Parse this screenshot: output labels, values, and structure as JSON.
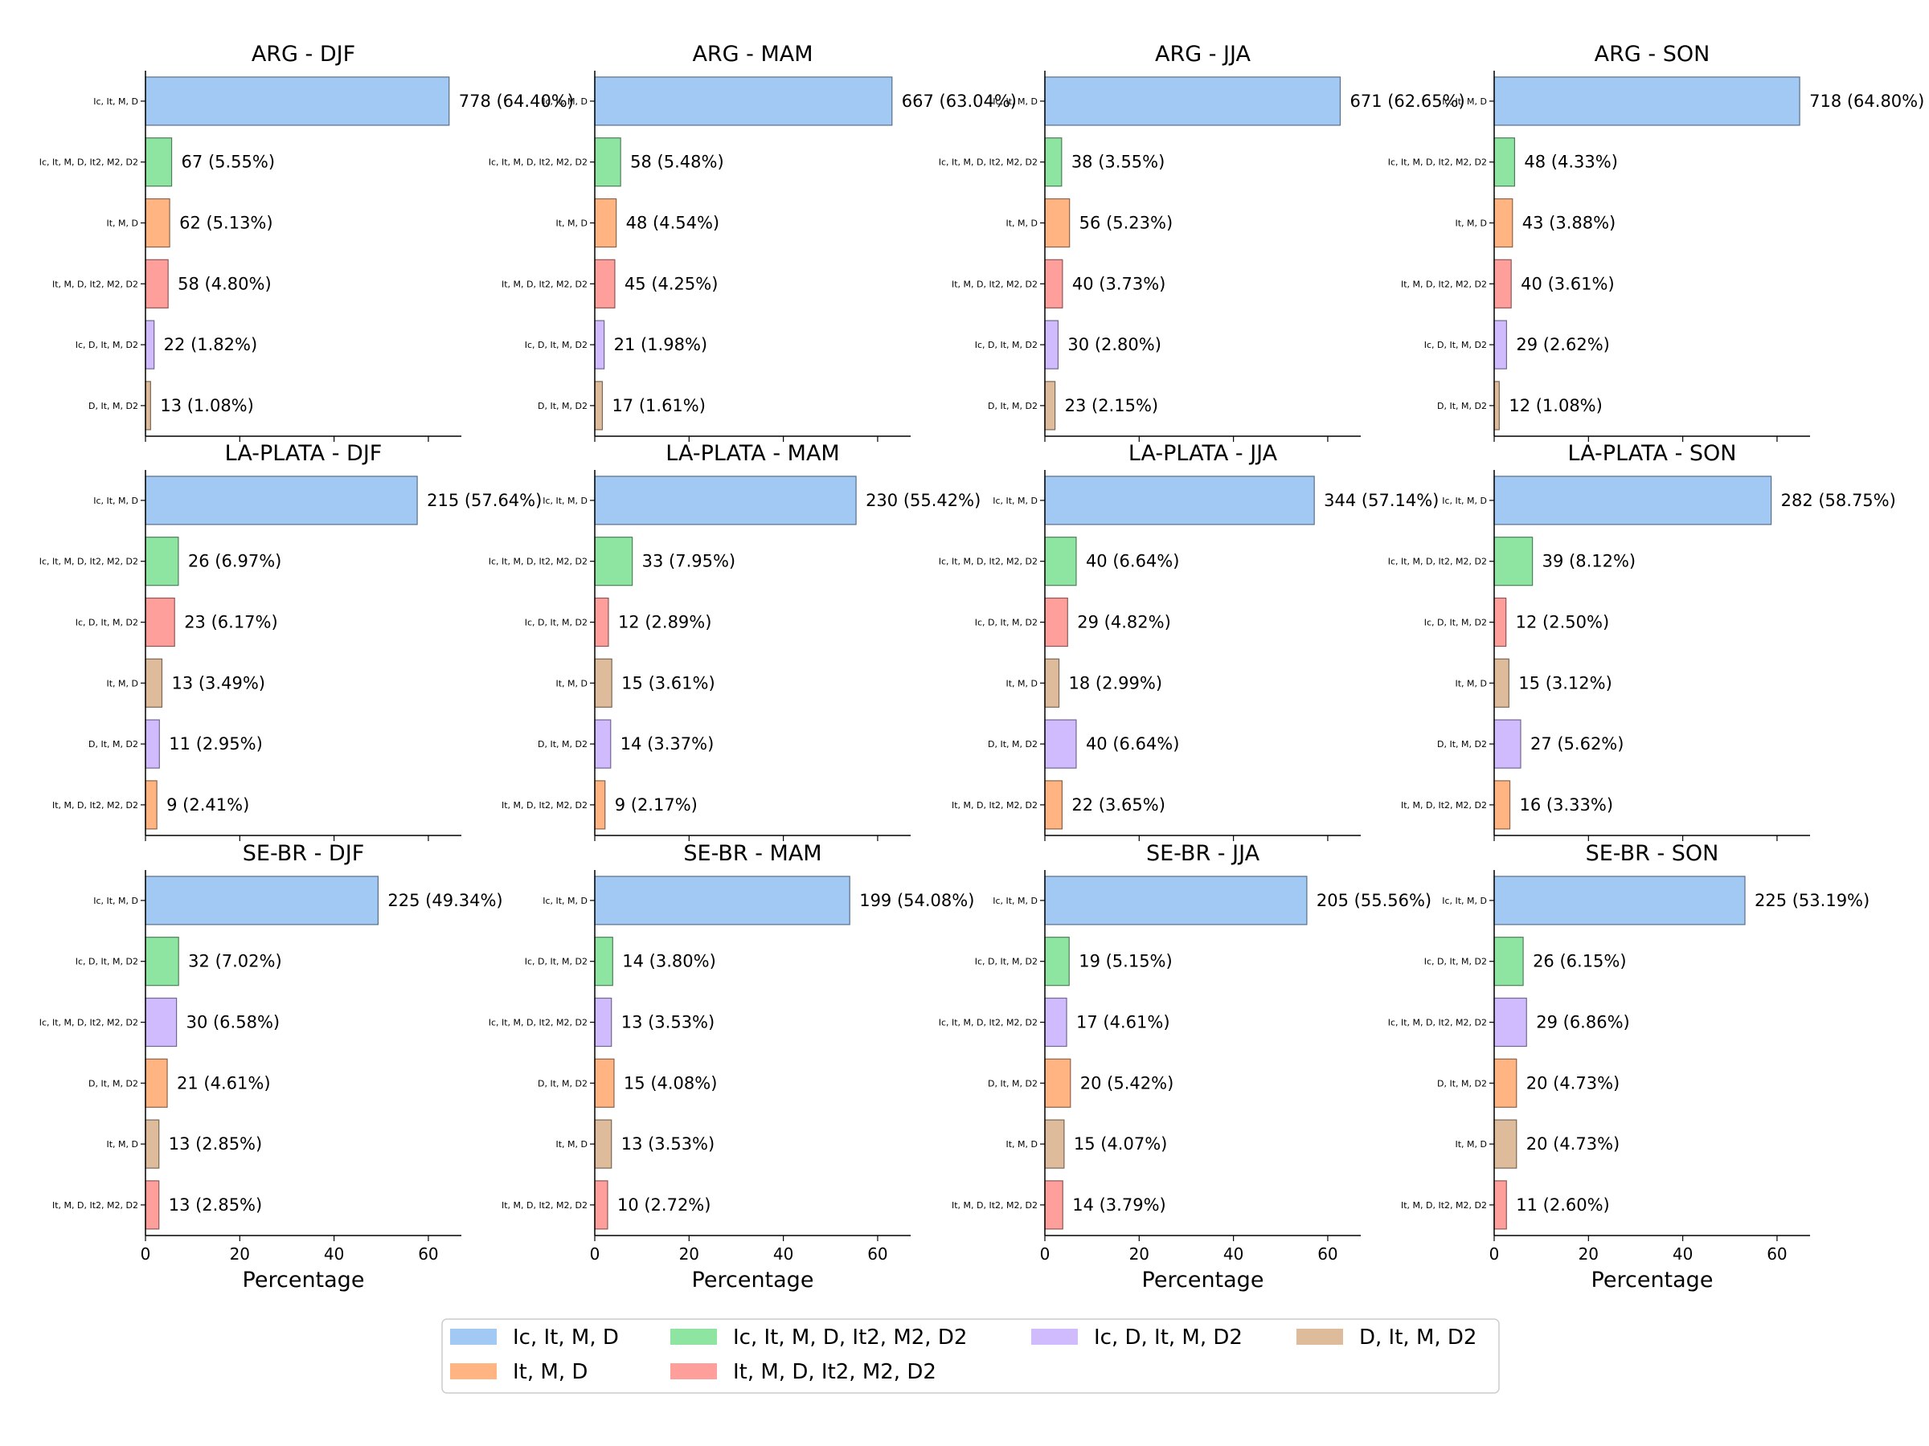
{
  "legend": {
    "placement": "bottom-center",
    "items": [
      {
        "label": "Ic, It, M, D",
        "color": "#a1c9f4"
      },
      {
        "label": "Ic, It, M, D, It2, M2, D2",
        "color": "#8de5a1"
      },
      {
        "label": "Ic, D, It, M, D2",
        "color": "#d0bbff"
      },
      {
        "label": "D, It, M, D2",
        "color": "#debb9b"
      },
      {
        "label": "It, M, D",
        "color": "#ffb482"
      },
      {
        "label": "It, M, D, It2, M2, D2",
        "color": "#ff9f9b"
      }
    ]
  },
  "chart_data": [
    {
      "type": "bar",
      "orientation": "horizontal",
      "title": "ARG - DJF",
      "xlabel": "",
      "xlim": [
        0,
        67
      ],
      "xticks": [
        0,
        20,
        40,
        60
      ],
      "categories": [
        "Ic, It, M, D",
        "Ic, It, M, D, It2, M2, D2",
        "It, M, D",
        "It, M, D, It2, M2, D2",
        "Ic, D, It, M, D2",
        "D, It, M, D2"
      ],
      "values": [
        64.4,
        5.55,
        5.13,
        4.8,
        1.82,
        1.08
      ],
      "labels": [
        "778 (64.40%)",
        "67 (5.55%)",
        "62 (5.13%)",
        "58 (4.80%)",
        "22 (1.82%)",
        "13 (1.08%)"
      ],
      "colors": [
        "#a1c9f4",
        "#8de5a1",
        "#ffb482",
        "#ff9f9b",
        "#d0bbff",
        "#debb9b"
      ]
    },
    {
      "type": "bar",
      "orientation": "horizontal",
      "title": "ARG - MAM",
      "xlabel": "",
      "xlim": [
        0,
        67
      ],
      "xticks": [
        0,
        20,
        40,
        60
      ],
      "categories": [
        "Ic, It, M, D",
        "Ic, It, M, D, It2, M2, D2",
        "It, M, D",
        "It, M, D, It2, M2, D2",
        "Ic, D, It, M, D2",
        "D, It, M, D2"
      ],
      "values": [
        63.04,
        5.48,
        4.54,
        4.25,
        1.98,
        1.61
      ],
      "labels": [
        "667 (63.04%)",
        "58 (5.48%)",
        "48 (4.54%)",
        "45 (4.25%)",
        "21 (1.98%)",
        "17 (1.61%)"
      ],
      "colors": [
        "#a1c9f4",
        "#8de5a1",
        "#ffb482",
        "#ff9f9b",
        "#d0bbff",
        "#debb9b"
      ]
    },
    {
      "type": "bar",
      "orientation": "horizontal",
      "title": "ARG - JJA",
      "xlabel": "",
      "xlim": [
        0,
        67
      ],
      "xticks": [
        0,
        20,
        40,
        60
      ],
      "categories": [
        "Ic, It, M, D",
        "Ic, It, M, D, It2, M2, D2",
        "It, M, D",
        "It, M, D, It2, M2, D2",
        "Ic, D, It, M, D2",
        "D, It, M, D2"
      ],
      "values": [
        62.65,
        3.55,
        5.23,
        3.73,
        2.8,
        2.15
      ],
      "labels": [
        "671 (62.65%)",
        "38 (3.55%)",
        "56 (5.23%)",
        "40 (3.73%)",
        "30 (2.80%)",
        "23 (2.15%)"
      ],
      "colors": [
        "#a1c9f4",
        "#8de5a1",
        "#ffb482",
        "#ff9f9b",
        "#d0bbff",
        "#debb9b"
      ]
    },
    {
      "type": "bar",
      "orientation": "horizontal",
      "title": "ARG - SON",
      "xlabel": "",
      "xlim": [
        0,
        67
      ],
      "xticks": [
        0,
        20,
        40,
        60
      ],
      "categories": [
        "Ic, It, M, D",
        "Ic, It, M, D, It2, M2, D2",
        "It, M, D",
        "It, M, D, It2, M2, D2",
        "Ic, D, It, M, D2",
        "D, It, M, D2"
      ],
      "values": [
        64.8,
        4.33,
        3.88,
        3.61,
        2.62,
        1.08
      ],
      "labels": [
        "718 (64.80%)",
        "48 (4.33%)",
        "43 (3.88%)",
        "40 (3.61%)",
        "29 (2.62%)",
        "12 (1.08%)"
      ],
      "colors": [
        "#a1c9f4",
        "#8de5a1",
        "#ffb482",
        "#ff9f9b",
        "#d0bbff",
        "#debb9b"
      ]
    },
    {
      "type": "bar",
      "orientation": "horizontal",
      "title": "LA-PLATA - DJF",
      "xlabel": "",
      "xlim": [
        0,
        67
      ],
      "xticks": [
        0,
        20,
        40,
        60
      ],
      "categories": [
        "Ic, It, M, D",
        "Ic, It, M, D, It2, M2, D2",
        "Ic, D, It, M, D2",
        "It, M, D",
        "D, It, M, D2",
        "It, M, D, It2, M2, D2"
      ],
      "values": [
        57.64,
        6.97,
        6.17,
        3.49,
        2.95,
        2.41
      ],
      "labels": [
        "215 (57.64%)",
        "26 (6.97%)",
        "23 (6.17%)",
        "13 (3.49%)",
        "11 (2.95%)",
        "9 (2.41%)"
      ],
      "colors": [
        "#a1c9f4",
        "#8de5a1",
        "#ff9f9b",
        "#debb9b",
        "#d0bbff",
        "#ffb482"
      ]
    },
    {
      "type": "bar",
      "orientation": "horizontal",
      "title": "LA-PLATA - MAM",
      "xlabel": "",
      "xlim": [
        0,
        67
      ],
      "xticks": [
        0,
        20,
        40,
        60
      ],
      "categories": [
        "Ic, It, M, D",
        "Ic, It, M, D, It2, M2, D2",
        "Ic, D, It, M, D2",
        "It, M, D",
        "D, It, M, D2",
        "It, M, D, It2, M2, D2"
      ],
      "values": [
        55.42,
        7.95,
        2.89,
        3.61,
        3.37,
        2.17
      ],
      "labels": [
        "230 (55.42%)",
        "33 (7.95%)",
        "12 (2.89%)",
        "15 (3.61%)",
        "14 (3.37%)",
        "9 (2.17%)"
      ],
      "colors": [
        "#a1c9f4",
        "#8de5a1",
        "#ff9f9b",
        "#debb9b",
        "#d0bbff",
        "#ffb482"
      ]
    },
    {
      "type": "bar",
      "orientation": "horizontal",
      "title": "LA-PLATA - JJA",
      "xlabel": "",
      "xlim": [
        0,
        67
      ],
      "xticks": [
        0,
        20,
        40,
        60
      ],
      "categories": [
        "Ic, It, M, D",
        "Ic, It, M, D, It2, M2, D2",
        "Ic, D, It, M, D2",
        "It, M, D",
        "D, It, M, D2",
        "It, M, D, It2, M2, D2"
      ],
      "values": [
        57.14,
        6.64,
        4.82,
        2.99,
        6.64,
        3.65
      ],
      "labels": [
        "344 (57.14%)",
        "40 (6.64%)",
        "29 (4.82%)",
        "18 (2.99%)",
        "40 (6.64%)",
        "22 (3.65%)"
      ],
      "colors": [
        "#a1c9f4",
        "#8de5a1",
        "#ff9f9b",
        "#debb9b",
        "#d0bbff",
        "#ffb482"
      ]
    },
    {
      "type": "bar",
      "orientation": "horizontal",
      "title": "LA-PLATA - SON",
      "xlabel": "",
      "xlim": [
        0,
        67
      ],
      "xticks": [
        0,
        20,
        40,
        60
      ],
      "categories": [
        "Ic, It, M, D",
        "Ic, It, M, D, It2, M2, D2",
        "Ic, D, It, M, D2",
        "It, M, D",
        "D, It, M, D2",
        "It, M, D, It2, M2, D2"
      ],
      "values": [
        58.75,
        8.12,
        2.5,
        3.12,
        5.62,
        3.33
      ],
      "labels": [
        "282 (58.75%)",
        "39 (8.12%)",
        "12 (2.50%)",
        "15 (3.12%)",
        "27 (5.62%)",
        "16 (3.33%)"
      ],
      "colors": [
        "#a1c9f4",
        "#8de5a1",
        "#ff9f9b",
        "#debb9b",
        "#d0bbff",
        "#ffb482"
      ]
    },
    {
      "type": "bar",
      "orientation": "horizontal",
      "title": "SE-BR - DJF",
      "xlabel": "Percentage",
      "xlim": [
        0,
        67
      ],
      "xticks": [
        0,
        20,
        40,
        60
      ],
      "categories": [
        "Ic, It, M, D",
        "Ic, D, It, M, D2",
        "Ic, It, M, D, It2, M2, D2",
        "D, It, M, D2",
        "It, M, D",
        "It, M, D, It2, M2, D2"
      ],
      "values": [
        49.34,
        7.02,
        6.58,
        4.61,
        2.85,
        2.85
      ],
      "labels": [
        "225 (49.34%)",
        "32 (7.02%)",
        "30 (6.58%)",
        "21 (4.61%)",
        "13 (2.85%)",
        "13 (2.85%)"
      ],
      "colors": [
        "#a1c9f4",
        "#8de5a1",
        "#d0bbff",
        "#ffb482",
        "#debb9b",
        "#ff9f9b"
      ]
    },
    {
      "type": "bar",
      "orientation": "horizontal",
      "title": "SE-BR - MAM",
      "xlabel": "Percentage",
      "xlim": [
        0,
        67
      ],
      "xticks": [
        0,
        20,
        40,
        60
      ],
      "categories": [
        "Ic, It, M, D",
        "Ic, D, It, M, D2",
        "Ic, It, M, D, It2, M2, D2",
        "D, It, M, D2",
        "It, M, D",
        "It, M, D, It2, M2, D2"
      ],
      "values": [
        54.08,
        3.8,
        3.53,
        4.08,
        3.53,
        2.72
      ],
      "labels": [
        "199 (54.08%)",
        "14 (3.80%)",
        "13 (3.53%)",
        "15 (4.08%)",
        "13 (3.53%)",
        "10 (2.72%)"
      ],
      "colors": [
        "#a1c9f4",
        "#8de5a1",
        "#d0bbff",
        "#ffb482",
        "#debb9b",
        "#ff9f9b"
      ]
    },
    {
      "type": "bar",
      "orientation": "horizontal",
      "title": "SE-BR - JJA",
      "xlabel": "Percentage",
      "xlim": [
        0,
        67
      ],
      "xticks": [
        0,
        20,
        40,
        60
      ],
      "categories": [
        "Ic, It, M, D",
        "Ic, D, It, M, D2",
        "Ic, It, M, D, It2, M2, D2",
        "D, It, M, D2",
        "It, M, D",
        "It, M, D, It2, M2, D2"
      ],
      "values": [
        55.56,
        5.15,
        4.61,
        5.42,
        4.07,
        3.79
      ],
      "labels": [
        "205 (55.56%)",
        "19 (5.15%)",
        "17 (4.61%)",
        "20 (5.42%)",
        "15 (4.07%)",
        "14 (3.79%)"
      ],
      "colors": [
        "#a1c9f4",
        "#8de5a1",
        "#d0bbff",
        "#ffb482",
        "#debb9b",
        "#ff9f9b"
      ]
    },
    {
      "type": "bar",
      "orientation": "horizontal",
      "title": "SE-BR - SON",
      "xlabel": "Percentage",
      "xlim": [
        0,
        67
      ],
      "xticks": [
        0,
        20,
        40,
        60
      ],
      "categories": [
        "Ic, It, M, D",
        "Ic, D, It, M, D2",
        "Ic, It, M, D, It2, M2, D2",
        "D, It, M, D2",
        "It, M, D",
        "It, M, D, It2, M2, D2"
      ],
      "values": [
        53.19,
        6.15,
        6.86,
        4.73,
        4.73,
        2.6
      ],
      "labels": [
        "225 (53.19%)",
        "26 (6.15%)",
        "29 (6.86%)",
        "20 (4.73%)",
        "20 (4.73%)",
        "11 (2.60%)"
      ],
      "colors": [
        "#a1c9f4",
        "#8de5a1",
        "#d0bbff",
        "#ffb482",
        "#debb9b",
        "#ff9f9b"
      ]
    }
  ]
}
